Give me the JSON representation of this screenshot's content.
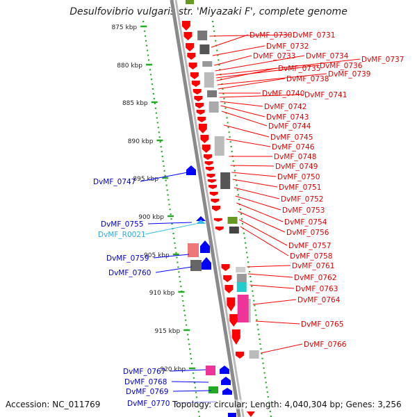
{
  "title": "Desulfovibrio vulgaris str. 'Miyazaki F', complete genome",
  "footer": {
    "accession": "Accession: NC_011769",
    "summary": "Topology: circular; Length: 4,040,304 bp; Genes: 3,256"
  },
  "colors": {
    "forward_gene": "#ff0000",
    "reverse_gene": "#0000ff",
    "rna_label": "#33bbee",
    "backbone": "#8a8a8a",
    "kbp_ticks": "#22aa22"
  },
  "kbp_labels": [
    "875 kbp",
    "880 kbp",
    "885 kbp",
    "890 kbp",
    "895 kbp",
    "900 kbp",
    "905 kbp",
    "910 kbp",
    "915 kbp",
    "920 kbp"
  ],
  "right_labels": [
    "DvMF_0730",
    "DvMF_0731",
    "DvMF_0732",
    "DvMF_0733",
    "DvMF_0734",
    "DvMF_0737",
    "DvMF_0736",
    "DvMF_0735",
    "DvMF_0739",
    "DvMF_0738",
    "DvMF_0740",
    "DvMF_0741",
    "DvMF_0742",
    "DvMF_0743",
    "DvMF_0744",
    "DvMF_0745",
    "DvMF_0746",
    "DvMF_0748",
    "DvMF_0749",
    "DvMF_0750",
    "DvMF_0751",
    "DvMF_0752",
    "DvMF_0753",
    "DvMF_0754",
    "DvMF_0756",
    "DvMF_0757",
    "DvMF_0758",
    "DvMF_0761",
    "DvMF_0762",
    "DvMF_0763",
    "DvMF_0764",
    "DvMF_0765",
    "DvMF_0766"
  ],
  "left_labels": [
    "DvMF_0747",
    "DvMF_0755",
    "DvMF_R0021",
    "DvMF_0759",
    "DvMF_0760",
    "DvMF_0767",
    "DvMF_0768",
    "DvMF_0769",
    "DvMF_0770"
  ]
}
